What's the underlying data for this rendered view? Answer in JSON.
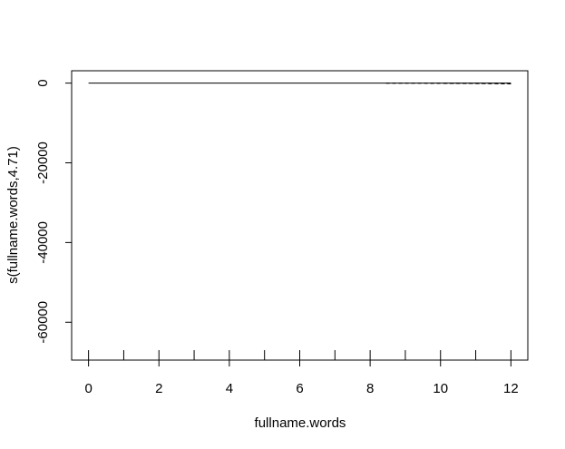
{
  "chart_data": {
    "type": "line",
    "title": "",
    "xlabel": "fullname.words",
    "ylabel": "s(fullname.words,4.71)",
    "xlim": [
      -0.48,
      12.48
    ],
    "ylim": [
      -69500,
      3100
    ],
    "x_ticks": [
      0,
      2,
      4,
      6,
      8,
      10,
      12
    ],
    "x_tick_labels": [
      "0",
      "2",
      "4",
      "6",
      "8",
      "10",
      "12"
    ],
    "y_ticks": [
      0,
      -20000,
      -40000,
      -60000
    ],
    "y_tick_labels": [
      "0",
      "-20000",
      "-40000",
      "-60000"
    ],
    "grid": false,
    "series": [
      {
        "style": "solid",
        "x": [
          0,
          12
        ],
        "y": [
          0,
          0
        ]
      },
      {
        "style": "dashed",
        "x": [
          8.45,
          12
        ],
        "y": [
          0,
          -50
        ]
      },
      {
        "style": "dashed",
        "x": [
          10.1,
          12
        ],
        "y": [
          0,
          -150
        ]
      }
    ],
    "rug": [
      0,
      1,
      2,
      3,
      4,
      5,
      6,
      7,
      8,
      9,
      10,
      11,
      12
    ]
  }
}
